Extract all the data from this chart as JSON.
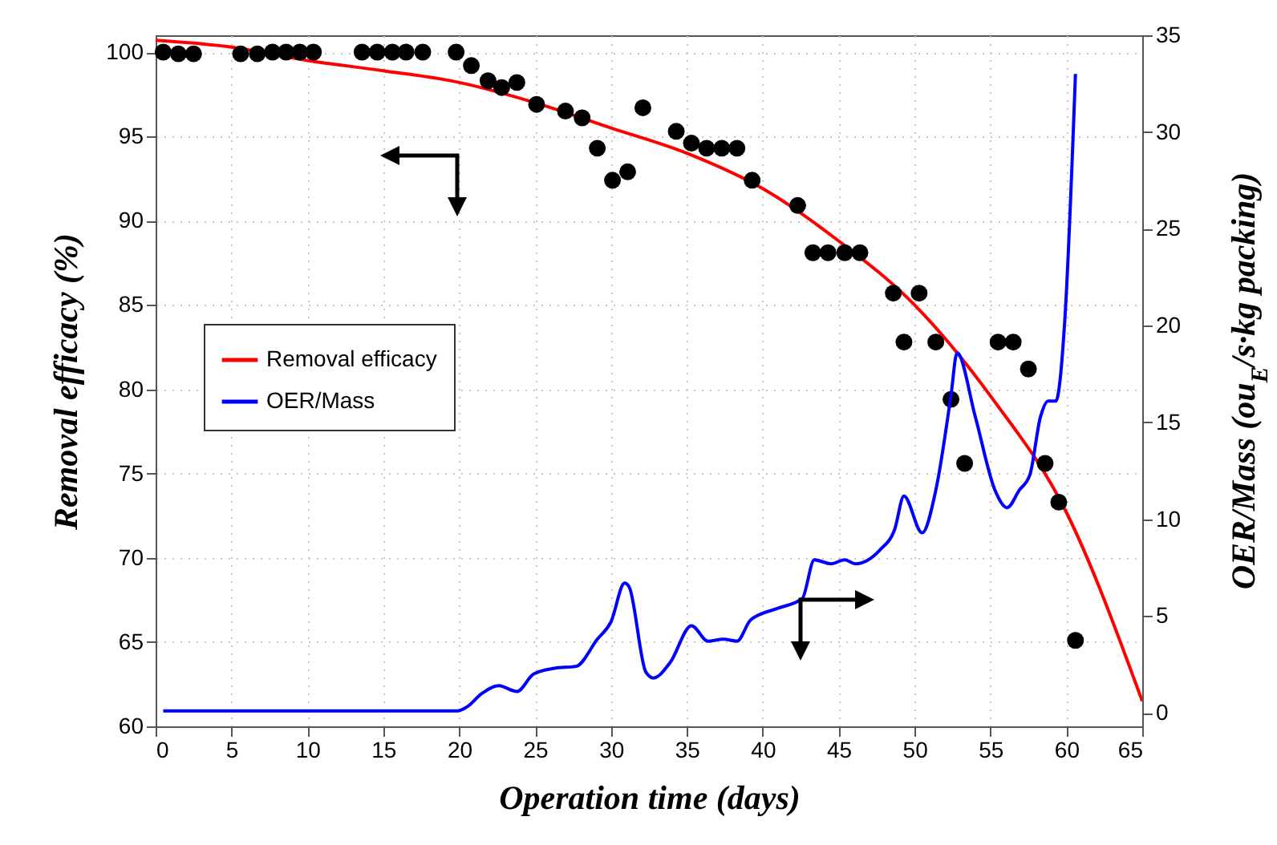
{
  "chart_data": {
    "type": "line",
    "xlabel": "Operation time (days)",
    "ylabel": "Removal efficacy (%)",
    "y2label": "OER/Mass (ou$_{E}$/s·kg packing)",
    "xlim": [
      0,
      65
    ],
    "xticks": [
      0,
      5,
      10,
      15,
      20,
      25,
      30,
      35,
      40,
      45,
      50,
      55,
      60,
      65
    ],
    "ylim": [
      60,
      101
    ],
    "yticks": [
      60,
      65,
      70,
      75,
      80,
      85,
      90,
      95,
      100
    ],
    "y2lim": [
      -0.7,
      35
    ],
    "y2ticks": [
      0,
      5,
      10,
      15,
      20,
      25,
      30,
      35
    ],
    "grid": true,
    "legend": "left",
    "series": [
      {
        "name": "Removal efficacy",
        "color": "#ff0000",
        "x": [
          0,
          5,
          10,
          15,
          20,
          25,
          30,
          35,
          40,
          45,
          50,
          55,
          60,
          65
        ],
        "values": [
          100.7,
          100.3,
          99.5,
          98.9,
          98.2,
          97.0,
          95.5,
          94.0,
          91.9,
          88.8,
          85.0,
          79.6,
          72.7,
          61.5
        ]
      },
      {
        "type": "scatter",
        "marker": "circle",
        "color": "#000000",
        "x": [
          0.5,
          1.5,
          2.5,
          5.6,
          6.7,
          7.7,
          8.6,
          9.5,
          10.4,
          13.6,
          14.6,
          15.6,
          16.5,
          17.6,
          19.8,
          20.8,
          21.9,
          22.8,
          23.8,
          25.1,
          27.0,
          28.1,
          29.1,
          30.1,
          31.1,
          32.1,
          34.3,
          35.3,
          36.3,
          37.3,
          38.3,
          39.3,
          42.3,
          43.3,
          44.3,
          45.4,
          46.4,
          48.6,
          49.3,
          50.3,
          51.4,
          52.4,
          53.3,
          55.5,
          56.5,
          57.5,
          58.6,
          59.5,
          60.6
        ],
        "values": [
          100,
          99.9,
          99.9,
          99.9,
          99.9,
          100,
          100,
          100,
          100,
          100,
          100,
          100,
          100,
          100,
          100,
          99.2,
          98.3,
          97.9,
          98.2,
          96.9,
          96.5,
          96.1,
          94.3,
          92.4,
          92.9,
          96.7,
          95.3,
          94.6,
          94.3,
          94.3,
          94.3,
          92.4,
          90.9,
          88.1,
          88.1,
          88.1,
          88.1,
          85.7,
          82.8,
          85.7,
          82.8,
          79.4,
          75.6,
          82.8,
          82.8,
          81.2,
          75.6,
          73.3,
          65.1
        ]
      },
      {
        "name": "OER/Mass",
        "axis": "y2",
        "color": "#0000ff",
        "x": [
          0.5,
          7.4,
          19.9,
          20.5,
          21.5,
          22.6,
          23.8,
          24.9,
          26.3,
          27.7,
          29.1,
          30.0,
          30.9,
          31.2,
          32.3,
          32.8,
          33.9,
          35.3,
          36.4,
          37.4,
          38.3,
          39.2,
          41.0,
          42.6,
          43.4,
          44.5,
          45.4,
          46.1,
          47.7,
          48.7,
          49.3,
          50.5,
          51.4,
          52.4,
          52.8,
          54.0,
          55.3,
          56.1,
          56.9,
          57.6,
          58.3,
          58.8,
          59.3,
          59.9,
          60.6
        ],
        "values": [
          0.1,
          0.1,
          0.1,
          0.3,
          1.0,
          1.4,
          1.1,
          2.0,
          2.3,
          2.4,
          3.8,
          4.7,
          6.7,
          6.5,
          2.1,
          1.8,
          2.6,
          4.5,
          3.7,
          3.8,
          3.7,
          4.8,
          5.4,
          5.9,
          7.9,
          7.7,
          7.9,
          7.7,
          8.4,
          9.5,
          11.2,
          9.3,
          11.5,
          16.4,
          18.6,
          15.3,
          11.5,
          10.6,
          11.5,
          12.3,
          15.3,
          16.1,
          16.1,
          20.3,
          33.0
        ]
      }
    ]
  }
}
